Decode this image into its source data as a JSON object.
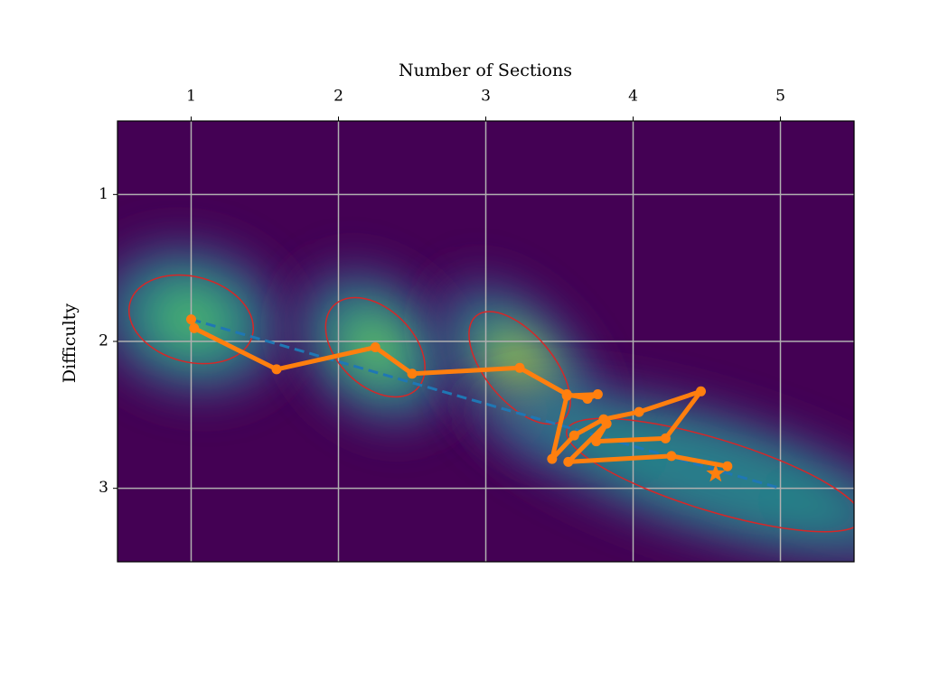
{
  "chart_data": {
    "type": "line",
    "xlabel": "Number of Sections",
    "ylabel": "Difficulty",
    "xlim": [
      0.5,
      5.5
    ],
    "ylim": [
      3.5,
      0.5
    ],
    "xticks": [
      1,
      2,
      3,
      4,
      5
    ],
    "yticks": [
      1,
      2,
      3
    ],
    "grid": true,
    "x_axis_position": "top",
    "background": "#440154",
    "ellipse_color": "#d62728",
    "clusters": [
      {
        "x": 1.0,
        "y": 1.85,
        "width": 0.86,
        "height": 0.58,
        "angle": 15,
        "peak_color": "#5ec962"
      },
      {
        "x": 2.25,
        "y": 2.04,
        "width": 0.8,
        "height": 0.52,
        "angle": 45,
        "peak_color": "#7ad151"
      },
      {
        "x": 3.23,
        "y": 2.18,
        "width": 0.92,
        "height": 0.46,
        "angle": 50,
        "peak_color": "#d8e219"
      },
      {
        "x": 4.55,
        "y": 2.91,
        "width": 2.09,
        "height": 0.49,
        "angle": 17,
        "peak_color": "#2a788e"
      }
    ],
    "series": [
      {
        "color": "#1f77b4",
        "style": "dashed",
        "x": [
          1,
          5
        ],
        "values": [
          1.85,
          3.0
        ]
      },
      {
        "color": "#ff7f0e",
        "style": "markers",
        "x": [
          1.0,
          1.02,
          1.58,
          2.25,
          2.5,
          3.23,
          3.55,
          3.69,
          3.76,
          3.55,
          3.45,
          3.6,
          3.8,
          4.04,
          4.46,
          4.22,
          3.75,
          3.82,
          3.56,
          4.26,
          4.64
        ],
        "values": [
          1.85,
          1.91,
          2.19,
          2.04,
          2.22,
          2.18,
          2.36,
          2.39,
          2.36,
          2.37,
          2.8,
          2.64,
          2.53,
          2.48,
          2.34,
          2.66,
          2.68,
          2.56,
          2.82,
          2.78,
          2.85
        ]
      }
    ],
    "end_marker": {
      "x": 4.56,
      "y": 2.9,
      "color": "#ff7f0e",
      "marker": "star"
    }
  }
}
